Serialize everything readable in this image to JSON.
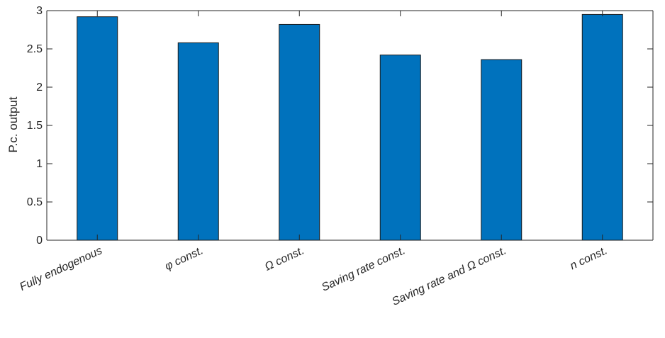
{
  "chart_data": {
    "type": "bar",
    "categories": [
      "Fully endogenous",
      "φ const.",
      "Ω const.",
      "Saving rate const.",
      "Saving rate and Ω const.",
      "n const."
    ],
    "values": [
      2.92,
      2.58,
      2.82,
      2.42,
      2.36,
      2.95
    ],
    "title": "",
    "xlabel": "",
    "ylabel": "P.c. output",
    "ylim": [
      0,
      3
    ],
    "yticks": [
      0,
      0.5,
      1,
      1.5,
      2,
      2.5,
      3
    ],
    "ytick_labels": [
      "0",
      "0.5",
      "1",
      "1.5",
      "2",
      "2.5",
      "3"
    ],
    "grid": false,
    "legend": "none",
    "colors": {
      "bar": "#0072bd",
      "bar_edge": "#1a1a1a",
      "axis": "#262626"
    }
  }
}
